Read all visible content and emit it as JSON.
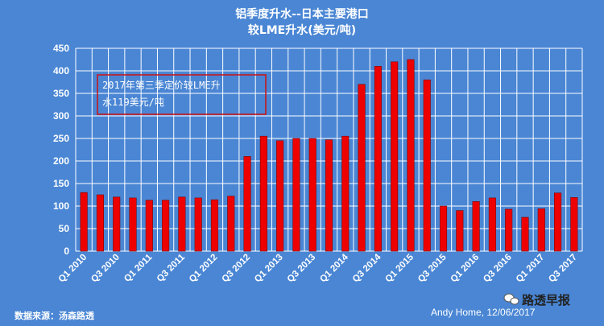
{
  "chart_data": {
    "type": "bar",
    "title": "铝季度升水--日本主要港口",
    "subtitle": "较LME升水(美元/吨)",
    "ylim": [
      0,
      450
    ],
    "yticks": [
      0,
      50,
      100,
      150,
      200,
      250,
      300,
      350,
      400,
      450
    ],
    "grid": true,
    "categories": [
      "Q1 2010",
      "Q2 2010",
      "Q3 2010",
      "Q4 2010",
      "Q1 2011",
      "Q2 2011",
      "Q3 2011",
      "Q4 2011",
      "Q1 2012",
      "Q2 2012",
      "Q3 2012",
      "Q4 2012",
      "Q1 2013",
      "Q2 2013",
      "Q3 2013",
      "Q4 2013",
      "Q1 2014",
      "Q2 2014",
      "Q3 2014",
      "Q4 2014",
      "Q1 2015",
      "Q2 2015",
      "Q3 2015",
      "Q4 2015",
      "Q1 2016",
      "Q2 2016",
      "Q3 2016",
      "Q4 2016",
      "Q1 2017",
      "Q2 2017",
      "Q3 2017"
    ],
    "tick_labels": [
      "Q1 2010",
      "Q3 2010",
      "Q1 2011",
      "Q3 2011",
      "Q1 2012",
      "Q3 2012",
      "Q1 2013",
      "Q3 2013",
      "Q1 2014",
      "Q3 2014",
      "Q1 2015",
      "Q3 2015",
      "Q1 2016",
      "Q3 2016",
      "Q1 2017",
      "Q3 2017"
    ],
    "values": [
      130,
      125,
      120,
      118,
      113,
      113,
      120,
      118,
      114,
      122,
      210,
      255,
      245,
      250,
      250,
      247,
      255,
      370,
      410,
      420,
      425,
      380,
      100,
      90,
      110,
      118,
      93,
      75,
      94,
      129,
      119
    ],
    "bar_color": "#ee0000",
    "background_color": "#4a86d4",
    "annotation": [
      "2017年第三季定价较LME升",
      "水119美元/吨"
    ]
  },
  "footer": {
    "source": "数据来源：汤森路透",
    "credit": "Andy Home, 12/06/2017",
    "brand": "路透早报"
  }
}
